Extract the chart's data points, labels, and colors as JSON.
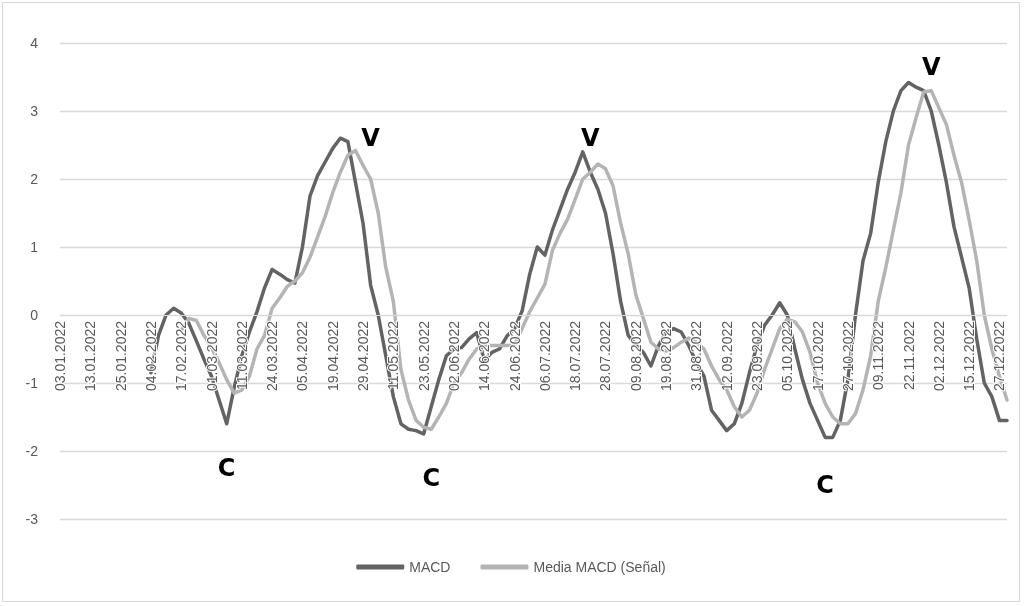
{
  "chart_data": {
    "type": "line",
    "categories": [
      "03.01.2022",
      null,
      null,
      null,
      "13.01.2022",
      null,
      null,
      null,
      "25.01.2022",
      null,
      null,
      null,
      "04.02.2022",
      null,
      null,
      null,
      "17.02.2022",
      null,
      null,
      null,
      "01.03.2022",
      null,
      null,
      null,
      "11.03.2022",
      null,
      null,
      null,
      "24.03.2022",
      null,
      null,
      null,
      "05.04.2022",
      null,
      null,
      null,
      "19.04.2022",
      null,
      null,
      null,
      "29.04.2022",
      null,
      null,
      null,
      "11.05.2022",
      null,
      null,
      null,
      "23.05.2022",
      null,
      null,
      null,
      "02.06.2022",
      null,
      null,
      null,
      "14.06.2022",
      null,
      null,
      null,
      "24.06.2022",
      null,
      null,
      null,
      "06.07.2022",
      null,
      null,
      null,
      "18.07.2022",
      null,
      null,
      null,
      "28.07.2022",
      null,
      null,
      null,
      "09.08.2022",
      null,
      null,
      null,
      "19.08.2022",
      null,
      null,
      null,
      "31.08.2022",
      null,
      null,
      null,
      "12.09.2022",
      null,
      null,
      null,
      "23.09.2022",
      null,
      null,
      null,
      "05.10.2022",
      null,
      null,
      null,
      "17.10.2022",
      null,
      null,
      null,
      "27.10.2022",
      null,
      null,
      null,
      "09.11.2022",
      null,
      null,
      null,
      "22.11.2022",
      null,
      null,
      null,
      "02.12.2022",
      null,
      null,
      null,
      "15.12.2022",
      null,
      null,
      null,
      "27.12.2022",
      null
    ],
    "series": [
      {
        "name": "MACD",
        "color": "#636363",
        "values": [
          null,
          null,
          null,
          null,
          null,
          null,
          null,
          null,
          null,
          null,
          null,
          null,
          -0.85,
          -0.3,
          0,
          0.1,
          0.03,
          -0.12,
          -0.38,
          -0.65,
          -0.9,
          -1.25,
          -1.6,
          -1.06,
          -0.6,
          -0.25,
          0.05,
          0.4,
          0.67,
          0.6,
          0.52,
          0.47,
          1.0,
          1.75,
          2.05,
          2.25,
          2.45,
          2.6,
          2.55,
          1.95,
          1.35,
          0.44,
          0.0,
          -0.6,
          -1.2,
          -1.6,
          -1.68,
          -1.7,
          -1.75,
          -1.35,
          -0.95,
          -0.6,
          -0.5,
          -0.48,
          -0.35,
          -0.26,
          -0.66,
          -0.55,
          -0.5,
          -0.31,
          -0.2,
          0.06,
          0.6,
          1.0,
          0.88,
          1.25,
          1.55,
          1.85,
          2.1,
          2.4,
          2.1,
          1.85,
          1.5,
          0.9,
          0.2,
          -0.3,
          -0.44,
          -0.55,
          -0.75,
          -0.45,
          -0.25,
          -0.2,
          -0.25,
          -0.45,
          -0.7,
          -0.9,
          -1.4,
          -1.55,
          -1.7,
          -1.6,
          -1.3,
          -0.85,
          -0.45,
          -0.15,
          0.0,
          0.18,
          0.0,
          -0.5,
          -0.95,
          -1.3,
          -1.55,
          -1.8,
          -1.8,
          -1.55,
          -0.95,
          0.0,
          0.8,
          1.2,
          1.95,
          2.55,
          3.0,
          3.3,
          3.42,
          3.35,
          3.3,
          3.0,
          2.5,
          1.95,
          1.3,
          0.85,
          0.4,
          -0.35,
          -1.0,
          -1.2,
          -1.55,
          -1.55
        ]
      },
      {
        "name": "Media MACD (Señal)",
        "color": "#b4b4b4",
        "values": [
          null,
          null,
          null,
          null,
          null,
          null,
          null,
          null,
          null,
          null,
          null,
          null,
          null,
          null,
          null,
          null,
          -0.23,
          -0.05,
          -0.08,
          -0.3,
          -0.48,
          -0.7,
          -0.95,
          -1.15,
          -1.1,
          -0.9,
          -0.5,
          -0.3,
          0.1,
          0.25,
          0.42,
          0.5,
          0.62,
          0.85,
          1.15,
          1.45,
          1.8,
          2.1,
          2.35,
          2.42,
          2.2,
          2.0,
          1.5,
          0.7,
          0.2,
          -0.8,
          -1.25,
          -1.55,
          -1.65,
          -1.68,
          -1.5,
          -1.3,
          -1.0,
          -0.85,
          -0.65,
          -0.5,
          -0.44,
          -0.45,
          -0.45,
          -0.45,
          -0.44,
          -0.2,
          0.05,
          0.25,
          0.45,
          0.95,
          1.2,
          1.41,
          1.7,
          2.0,
          2.1,
          2.22,
          2.15,
          1.9,
          1.35,
          0.9,
          0.3,
          -0.05,
          -0.4,
          -0.5,
          -0.53,
          -0.48,
          -0.4,
          -0.34,
          -0.4,
          -0.5,
          -0.75,
          -0.95,
          -1.1,
          -1.35,
          -1.5,
          -1.4,
          -1.15,
          -0.8,
          -0.5,
          -0.2,
          -0.06,
          -0.1,
          -0.25,
          -0.55,
          -1.0,
          -1.3,
          -1.5,
          -1.6,
          -1.6,
          -1.45,
          -1.1,
          -0.6,
          0.2,
          0.7,
          1.25,
          1.8,
          2.5,
          2.9,
          3.28,
          3.3,
          3.05,
          2.8,
          2.35,
          1.95,
          1.4,
          0.8,
          0.0,
          -0.5,
          -0.9,
          -1.25
        ]
      }
    ],
    "ylim": [
      -3,
      4
    ],
    "yticks": [
      -3,
      -2,
      -1,
      0,
      1,
      2,
      3,
      4
    ],
    "annotations": [
      "C",
      "V",
      "C",
      "V",
      "C",
      "V"
    ],
    "grid": "y",
    "legend": "bottom",
    "marker": "none",
    "line_style": "solid"
  }
}
